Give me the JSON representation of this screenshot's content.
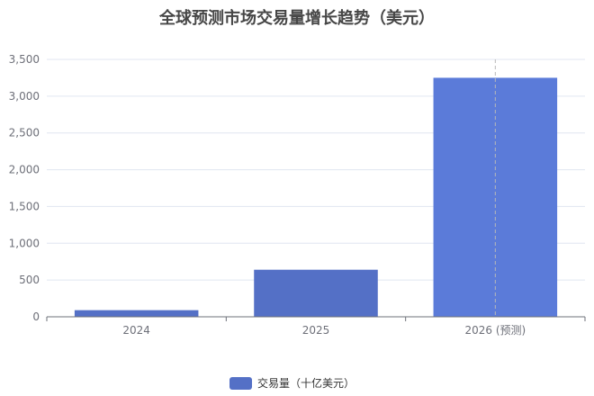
{
  "chart_data": {
    "type": "bar",
    "title": "全球预测市场交易量增长趋势（美元）",
    "categories": [
      "2024",
      "2025",
      "2026 (预测)"
    ],
    "series": [
      {
        "name": "交易量（十亿美元）",
        "values": [
          90,
          640,
          3250
        ]
      }
    ],
    "ylim": [
      0,
      3500
    ],
    "y_ticks": [
      0,
      500,
      1000,
      1500,
      2000,
      2500,
      3000,
      3500
    ],
    "y_tick_labels": [
      "0",
      "500",
      "1,000",
      "1,500",
      "2,000",
      "2,500",
      "3,000",
      "3,500"
    ],
    "xlabel": "",
    "ylabel": "",
    "grid": true,
    "legend_position": "bottom-center",
    "colors": {
      "bars": [
        "#5470c6",
        "#5470c6",
        "#5b7bd9"
      ],
      "grid": "#e0e6f1",
      "axis": "#6e7079",
      "title": "#464646"
    }
  }
}
